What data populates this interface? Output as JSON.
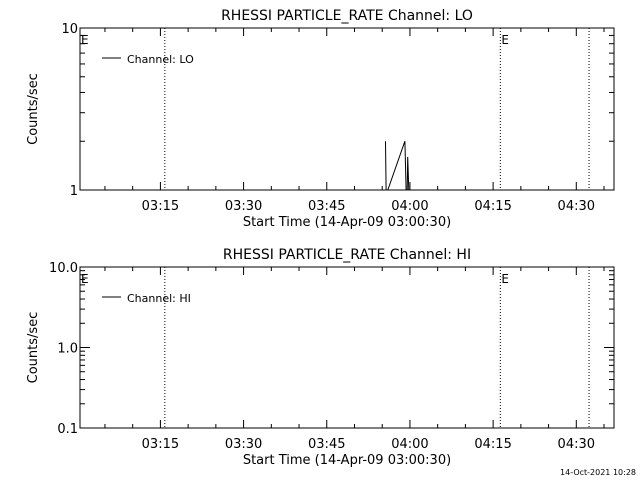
{
  "chart_data": [
    {
      "type": "line",
      "title": "RHESSI PARTICLE_RATE Channel: LO",
      "xlabel": "Start Time (14-Apr-09 03:00:30)",
      "ylabel": "Counts/sec",
      "x_ticks": [
        "03:15",
        "03:30",
        "03:45",
        "04:00",
        "04:15",
        "04:30"
      ],
      "x_tick_minutes": [
        15,
        30,
        45,
        60,
        75,
        90
      ],
      "x_range_minutes": [
        0.5,
        96.8
      ],
      "y_scale": "log",
      "ylim": [
        1,
        10
      ],
      "y_ticks": [
        {
          "value": 1,
          "label": "1"
        },
        {
          "value": 10,
          "label": "10"
        }
      ],
      "legend": {
        "label": "Channel: LO",
        "position": "top-left"
      },
      "series": [
        {
          "name": "Channel: LO",
          "points": [
            [
              55.6,
              2.0
            ],
            [
              55.7,
              1.0
            ],
            [
              55.8,
              1.0
            ],
            [
              56.0,
              1.0
            ],
            [
              59.1,
              2.0
            ],
            [
              59.3,
              1.0
            ],
            [
              59.5,
              1.0
            ],
            [
              59.6,
              1.6
            ],
            [
              59.8,
              1.0
            ]
          ]
        }
      ],
      "event_markers_minutes": [
        15.8,
        76.3,
        92.3
      ],
      "e_labels": [
        {
          "text": "E",
          "x_minutes": 0.5
        },
        {
          "text": "E",
          "x_minutes": 76.3
        }
      ]
    },
    {
      "type": "line",
      "title": "RHESSI PARTICLE_RATE Channel: HI",
      "xlabel": "Start Time (14-Apr-09 03:00:30)",
      "ylabel": "Counts/sec",
      "x_ticks": [
        "03:15",
        "03:30",
        "03:45",
        "04:00",
        "04:15",
        "04:30"
      ],
      "x_tick_minutes": [
        15,
        30,
        45,
        60,
        75,
        90
      ],
      "x_range_minutes": [
        0.5,
        96.8
      ],
      "y_scale": "log",
      "ylim": [
        0.1,
        10
      ],
      "y_ticks": [
        {
          "value": 0.1,
          "label": "0.1"
        },
        {
          "value": 1,
          "label": "1.0"
        },
        {
          "value": 10,
          "label": "10.0"
        }
      ],
      "legend": {
        "label": "Channel: HI",
        "position": "top-left"
      },
      "series": [
        {
          "name": "Channel: HI",
          "points": []
        }
      ],
      "event_markers_minutes": [
        15.8,
        76.3,
        92.3
      ],
      "e_labels": [
        {
          "text": "E",
          "x_minutes": 0.5
        },
        {
          "text": "E",
          "x_minutes": 76.3
        }
      ]
    }
  ],
  "footer": {
    "timestamp": "14-Oct-2021 10:28"
  }
}
